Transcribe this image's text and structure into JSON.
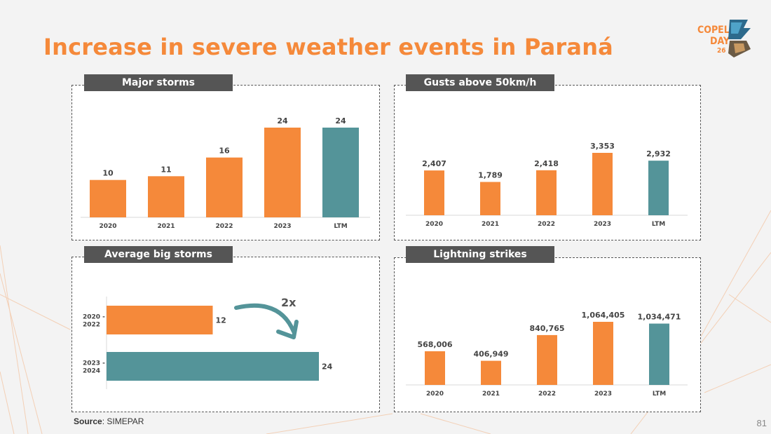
{
  "page": {
    "title": "Increase in severe weather events in Paraná",
    "logo": {
      "line1": "COPEL",
      "line2": "DAY",
      "line3": "26"
    },
    "source_label": "Source",
    "source_value": ": SIMEPAR",
    "page_number": "81"
  },
  "colors": {
    "orange": "#F5893A",
    "teal": "#549499",
    "dark": "#555555"
  },
  "chart_data": [
    {
      "type": "bar",
      "title": "Major storms",
      "categories": [
        "2020",
        "2021",
        "2022",
        "2023",
        "LTM"
      ],
      "values": [
        10,
        11,
        16,
        24,
        24
      ],
      "labels": [
        "10",
        "11",
        "16",
        "24",
        "24"
      ],
      "highlight": "LTM",
      "ylim": [
        0,
        24
      ]
    },
    {
      "type": "bar",
      "title": "Gusts above 50km/h",
      "categories": [
        "2020",
        "2021",
        "2022",
        "2023",
        "LTM"
      ],
      "values": [
        2407,
        1789,
        2418,
        3353,
        2932
      ],
      "labels": [
        "2,407",
        "1,789",
        "2,418",
        "3,353",
        "2,932"
      ],
      "highlight": "LTM",
      "ylim": [
        0,
        3353
      ]
    },
    {
      "type": "bar",
      "orientation": "horizontal",
      "title": "Average big storms",
      "categories": [
        "2020 - 2022",
        "2023 - 2024"
      ],
      "values": [
        12,
        24
      ],
      "labels": [
        "12",
        "24"
      ],
      "annotation": "2x",
      "ylim": [
        0,
        24
      ]
    },
    {
      "type": "bar",
      "title": "Lightning strikes",
      "categories": [
        "2020",
        "2021",
        "2022",
        "2023",
        "LTM"
      ],
      "values": [
        568006,
        406949,
        840765,
        1064405,
        1034471
      ],
      "labels": [
        "568,006",
        "406,949",
        "840,765",
        "1,064,405",
        "1,034,471"
      ],
      "highlight": "LTM",
      "ylim": [
        0,
        1064405
      ]
    }
  ]
}
